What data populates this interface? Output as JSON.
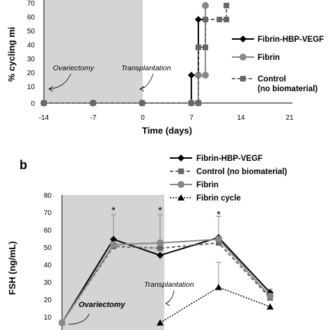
{
  "chart_data": [
    {
      "type": "line",
      "xlabel": "Time (days)",
      "ylabel": "% cycling mi",
      "xlim": [
        -14,
        21
      ],
      "ylim": [
        0,
        70
      ],
      "x_ticks": [
        "-14",
        "-7",
        "0",
        "7",
        "14",
        "21"
      ],
      "y_ticks": [
        "0",
        "10",
        "20",
        "30",
        "40",
        "50",
        "60",
        "70"
      ],
      "shaded_region": [
        -14,
        0
      ],
      "legend_position": "right",
      "series": [
        {
          "name": "Fibrin-HBP-VEGF",
          "color": "#000000",
          "marker": "diamond",
          "line": "solid",
          "x": [
            -14,
            -7,
            0,
            7,
            7,
            8,
            8,
            9,
            9
          ],
          "y": [
            0,
            0,
            0,
            0,
            20,
            20,
            60,
            60,
            70
          ]
        },
        {
          "name": "Fibrin",
          "color": "#888888",
          "marker": "circle",
          "line": "solid",
          "x": [
            -14,
            -7,
            0,
            7,
            8,
            8,
            9,
            9
          ],
          "y": [
            0,
            0,
            0,
            0,
            0,
            20,
            20,
            70
          ]
        },
        {
          "name": "Control\n(no biomaterial)",
          "color": "#666666",
          "marker": "square",
          "line": "dashed",
          "x": [
            -14,
            -7,
            0,
            7,
            8,
            8,
            9,
            9,
            11,
            12,
            12
          ],
          "y": [
            0,
            0,
            0,
            0,
            0,
            40,
            40,
            60,
            60,
            60,
            70
          ]
        }
      ],
      "annotations": [
        "Ovariectomy",
        "Transplantation"
      ]
    },
    {
      "type": "line",
      "panel": "b",
      "ylabel": "FSH (ng/mL)",
      "ylim": [
        0,
        80
      ],
      "y_ticks": [
        "0",
        "10",
        "20",
        "30",
        "40",
        "50",
        "60",
        "70",
        "80"
      ],
      "legend_position": "top",
      "series": [
        {
          "name": "Fibrin-HBP-VEGF",
          "color": "#000000",
          "marker": "diamond",
          "line": "solid",
          "points": [
            [
              0,
              8
            ],
            [
              1,
              55
            ],
            [
              2,
              46
            ],
            [
              3,
              56
            ],
            [
              4,
              25
            ]
          ]
        },
        {
          "name": "Control  (no biomaterial)",
          "color": "#666666",
          "marker": "square",
          "line": "dashed",
          "points": [
            [
              0,
              8
            ],
            [
              1,
              51
            ],
            [
              2,
              50
            ],
            [
              3,
              53
            ],
            [
              4,
              22
            ]
          ]
        },
        {
          "name": "Fibrin",
          "color": "#888888",
          "marker": "circle",
          "line": "solid",
          "points": [
            [
              0,
              8
            ],
            [
              1,
              52
            ],
            [
              2,
              53
            ],
            [
              3,
              55
            ],
            [
              4,
              23
            ]
          ]
        },
        {
          "name": "Fibrin cycle",
          "color": "#000000",
          "marker": "triangle",
          "line": "dotted",
          "points": [
            [
              2,
              8
            ],
            [
              3,
              28
            ],
            [
              4,
              17
            ]
          ]
        }
      ],
      "error_bars": [
        {
          "x": 1,
          "y": 55,
          "top": 69
        },
        {
          "x": 2,
          "y": 53,
          "top": 69
        },
        {
          "x": 3,
          "y": 56,
          "top": 68
        },
        {
          "x": 3,
          "y": 28,
          "top": 42
        },
        {
          "x": 4,
          "y": 25,
          "top": 27
        }
      ],
      "significance": [
        {
          "x": 1,
          "label": "*"
        },
        {
          "x": 2,
          "label": "*"
        },
        {
          "x": 3,
          "label": "*"
        }
      ],
      "annotations": [
        "Transplantation",
        "Ovariectomy"
      ]
    }
  ]
}
